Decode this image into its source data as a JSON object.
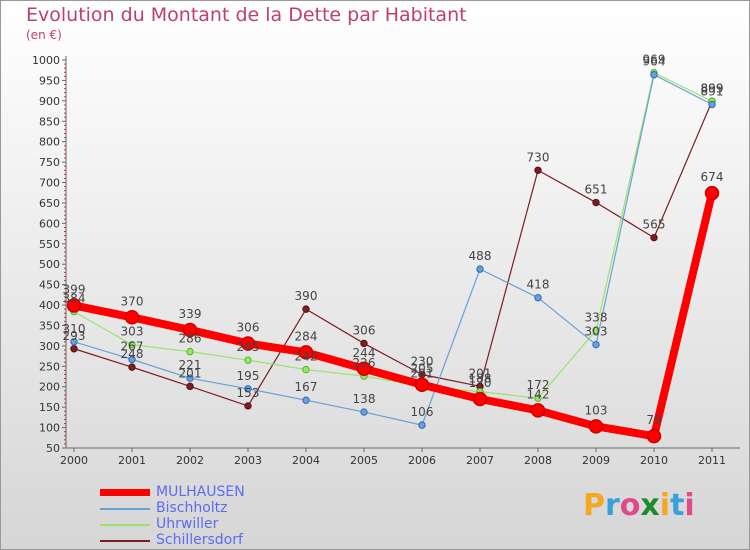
{
  "title": "Evolution du Montant de la Dette par Habitant",
  "unit": "(en €)",
  "logo": {
    "text": "Proxiti",
    "colors": [
      "#f5a623",
      "#3aa0dc",
      "#e04a8a",
      "#1e8a2e",
      "#f5a623",
      "#3aa0dc",
      "#e04a8a"
    ]
  },
  "chart_data": {
    "type": "line",
    "x": [
      "2000",
      "2001",
      "2002",
      "2003",
      "2004",
      "2005",
      "2006",
      "2007",
      "2008",
      "2009",
      "2010",
      "2011"
    ],
    "ylim": [
      50,
      1000
    ],
    "yticks": [
      50,
      100,
      150,
      200,
      250,
      300,
      350,
      400,
      450,
      500,
      550,
      600,
      650,
      700,
      750,
      800,
      850,
      900,
      950,
      1000
    ],
    "grid": false,
    "legend": "bottom-left",
    "series": [
      {
        "name": "MULHAUSEN",
        "color": "#ff0000",
        "markerStroke": "#cc0000",
        "lineWidth": 8,
        "values": [
          399,
          370,
          339,
          306,
          284,
          244,
          205,
          170,
          142,
          103,
          79,
          674
        ]
      },
      {
        "name": "Bischholtz",
        "color": "#6aa0d8",
        "markerStroke": "#2c6bb5",
        "lineWidth": 1.2,
        "values": [
          310,
          267,
          221,
          195,
          167,
          138,
          106,
          488,
          418,
          303,
          964,
          891
        ]
      },
      {
        "name": "Uhrwiller",
        "color": "#9be36a",
        "markerStroke": "#4cb82a",
        "lineWidth": 1.2,
        "values": [
          384,
          303,
          286,
          265,
          242,
          226,
          201,
          188,
          172,
          338,
          969,
          899
        ]
      },
      {
        "name": "Schillersdorf",
        "color": "#7b1e22",
        "markerStroke": "#5a0f12",
        "lineWidth": 1.2,
        "values": [
          293,
          248,
          201,
          153,
          390,
          306,
          230,
          201,
          730,
          651,
          565,
          899
        ]
      }
    ]
  },
  "labels": [
    {
      "s": 0,
      "t": "399"
    },
    {
      "s": 0,
      "t": "370"
    },
    {
      "s": 0,
      "t": "339"
    },
    {
      "s": 0,
      "t": "306"
    },
    {
      "s": 0,
      "t": "284"
    },
    {
      "s": 0,
      "t": "244"
    },
    {
      "s": 0,
      "t": "205"
    },
    {
      "s": 0,
      "t": "170"
    },
    {
      "s": 0,
      "t": "142"
    },
    {
      "s": 0,
      "t": "103"
    },
    {
      "s": 0,
      "t": "79"
    },
    {
      "s": 0,
      "t": "674"
    },
    {
      "s": 1,
      "t": "310"
    },
    {
      "s": 1,
      "t": "267"
    },
    {
      "s": 1,
      "t": "221"
    },
    {
      "s": 1,
      "t": "195"
    },
    {
      "s": 1,
      "t": "167"
    },
    {
      "s": 1,
      "t": "138"
    },
    {
      "s": 1,
      "t": "106"
    },
    {
      "s": 1,
      "t": "488"
    },
    {
      "s": 1,
      "t": "418"
    },
    {
      "s": 1,
      "t": "303"
    },
    {
      "s": 1,
      "t": "964"
    },
    {
      "s": 1,
      "t": "891"
    },
    {
      "s": 2,
      "t": "384"
    },
    {
      "s": 2,
      "t": "303"
    },
    {
      "s": 2,
      "t": "286"
    },
    {
      "s": 2,
      "t": "265"
    },
    {
      "s": 2,
      "t": "242"
    },
    {
      "s": 2,
      "t": "226"
    },
    {
      "s": 2,
      "t": "201"
    },
    {
      "s": 2,
      "t": "188"
    },
    {
      "s": 2,
      "t": "172"
    },
    {
      "s": 2,
      "t": "338"
    },
    {
      "s": 2,
      "t": "969"
    },
    {
      "s": 2,
      "t": "899"
    },
    {
      "s": 3,
      "t": "293"
    },
    {
      "s": 3,
      "t": "248"
    },
    {
      "s": 3,
      "t": "201"
    },
    {
      "s": 3,
      "t": "153"
    },
    {
      "s": 3,
      "t": "390"
    },
    {
      "s": 3,
      "t": "306"
    },
    {
      "s": 3,
      "t": "230"
    },
    {
      "s": 3,
      "t": "201"
    },
    {
      "s": 3,
      "t": "730"
    },
    {
      "s": 3,
      "t": "651"
    },
    {
      "s": 3,
      "t": "565"
    },
    {
      "s": 3,
      "t": "899"
    }
  ]
}
